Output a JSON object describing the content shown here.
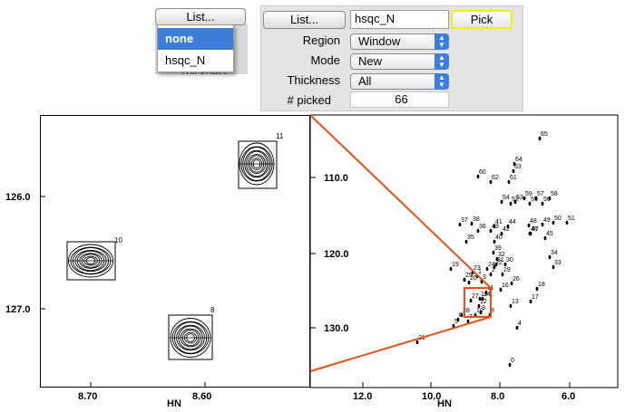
{
  "left_popup": {
    "button_label": "List...",
    "hidden_behind": "Thickness",
    "menu_items": [
      "none",
      "hsqc_N"
    ]
  },
  "pick_panel": {
    "list_button_label": "List...",
    "list_value": "hsqc_N",
    "pick_label": "Pick",
    "region_label": "Region",
    "region_value": "Window",
    "mode_label": "Mode",
    "mode_value": "New",
    "thickness_label": "Thickness",
    "thickness_value": "All",
    "picked_label": "# picked",
    "picked_value": "66"
  },
  "zoom_plot": {
    "y_ticks": [
      "126.0",
      "127.0"
    ],
    "x_ticks": [
      "8.70",
      "8.60"
    ],
    "x_axis_label": "HN",
    "peaks": [
      {
        "label": "11"
      },
      {
        "label": "10"
      },
      {
        "label": "8"
      }
    ]
  },
  "full_plot": {
    "y_ticks": [
      "110.0",
      "120.0",
      "130.0"
    ],
    "x_ticks": [
      "12.0",
      "10.0",
      "8.0",
      "6.0"
    ],
    "x_axis_label": "HN",
    "peak_labels": [
      "65",
      "60",
      "62",
      "61",
      "64",
      "63",
      "59",
      "57",
      "58",
      "56",
      "55",
      "53",
      "54",
      "52",
      "37",
      "38",
      "36",
      "43",
      "41",
      "44",
      "48",
      "46",
      "49",
      "50",
      "51",
      "45",
      "40",
      "35",
      "39",
      "34",
      "33",
      "32",
      "31",
      "30",
      "23",
      "25",
      "22",
      "19",
      "20",
      "24",
      "26",
      "18",
      "17",
      "14",
      "13",
      "12",
      "11",
      "9",
      "10",
      "8",
      "7",
      "6",
      "5",
      "4",
      "3",
      "2",
      "1",
      "21",
      "0",
      "15",
      "16",
      "42",
      "47",
      "27",
      "28",
      "29"
    ]
  },
  "colors": {
    "zoom_lines": "#e8501a",
    "pick_highlight": "#f5f000",
    "menu_selection": "#3c7ed9",
    "popup_arrow": "#3a7fe0"
  }
}
